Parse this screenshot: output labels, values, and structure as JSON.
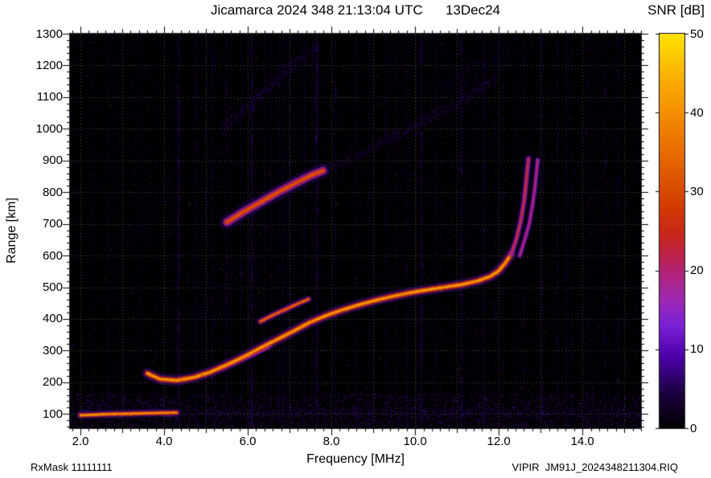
{
  "header": {
    "title": "Jicamarca 2024 348 21:13:04 UTC      13Dec24",
    "colorbar_title": "SNR [dB]"
  },
  "footer": {
    "left": "RxMask 11111111",
    "right": "VIPIR  JM91J_2024348211304.RIQ"
  },
  "chart_data": {
    "type": "heatmap",
    "title": "Jicamarca 2024 348 21:13:04 UTC      13Dec24",
    "xlabel": "Frequency [MHz]",
    "ylabel": "Range [km]",
    "xlim": [
      1.75,
      15.4
    ],
    "ylim": [
      55,
      1300
    ],
    "x_tick_values": [
      2,
      4,
      6,
      8,
      10,
      12,
      14
    ],
    "x_tick_labels": [
      "2.0",
      "4.0",
      "6.0",
      "8.0",
      "10.0",
      "12.0",
      "14.0"
    ],
    "x_semi_tick_step": 1,
    "x_minor_tick_step": 0.2,
    "y_tick_values": [
      100,
      200,
      300,
      400,
      500,
      600,
      700,
      800,
      900,
      1000,
      1100,
      1200,
      1300
    ],
    "y_minor_tick_step": 20,
    "grid": true,
    "colorbar": {
      "label": "SNR [dB]",
      "min": 0,
      "max": 50,
      "ticks": [
        0,
        10,
        20,
        30,
        40,
        50
      ],
      "colormap": [
        [
          0.0,
          "#000000"
        ],
        [
          0.09,
          "#1c0040"
        ],
        [
          0.18,
          "#4b00a8"
        ],
        [
          0.26,
          "#7a1fd8"
        ],
        [
          0.32,
          "#9a28b8"
        ],
        [
          0.4,
          "#b42272"
        ],
        [
          0.48,
          "#c62424"
        ],
        [
          0.56,
          "#d23a00"
        ],
        [
          0.66,
          "#e25e00"
        ],
        [
          0.76,
          "#ef8000"
        ],
        [
          0.88,
          "#f9ab00"
        ],
        [
          1.0,
          "#ffe300"
        ]
      ]
    },
    "rfi_lines": [
      [
        2.65,
        0.18,
        2
      ],
      [
        3.25,
        0.18,
        2
      ],
      [
        3.8,
        0.15,
        2
      ],
      [
        4.35,
        0.45,
        3
      ],
      [
        4.8,
        0.22,
        2
      ],
      [
        5.15,
        0.3,
        2
      ],
      [
        5.5,
        0.28,
        2
      ],
      [
        5.85,
        0.2,
        2
      ],
      [
        6.1,
        0.4,
        3
      ],
      [
        6.4,
        0.28,
        2
      ],
      [
        6.75,
        0.22,
        2
      ],
      [
        7.0,
        0.25,
        2
      ],
      [
        7.35,
        0.2,
        2
      ],
      [
        7.65,
        0.45,
        3
      ],
      [
        8.1,
        0.3,
        2
      ],
      [
        8.6,
        0.22,
        2
      ],
      [
        8.9,
        0.2,
        2
      ],
      [
        9.3,
        0.28,
        2
      ],
      [
        9.55,
        0.2,
        2
      ],
      [
        9.8,
        0.3,
        2
      ],
      [
        10.15,
        0.4,
        3
      ],
      [
        10.5,
        0.24,
        2
      ],
      [
        11.1,
        0.38,
        3
      ],
      [
        11.65,
        0.3,
        2
      ],
      [
        12.1,
        0.28,
        2
      ],
      [
        12.6,
        0.22,
        2
      ],
      [
        13.05,
        0.32,
        2
      ],
      [
        13.4,
        0.28,
        2
      ],
      [
        13.75,
        0.22,
        2
      ],
      [
        14.1,
        0.28,
        2
      ],
      [
        14.55,
        0.3,
        2
      ],
      [
        14.85,
        0.26,
        2
      ]
    ],
    "traces": [
      {
        "name": "e-diffuse-left",
        "style": "diffuse",
        "snr": 7,
        "width_km": 70,
        "points": [
          [
            2.0,
            118
          ],
          [
            2.8,
            126
          ],
          [
            3.6,
            120
          ],
          [
            4.2,
            110
          ]
        ]
      },
      {
        "name": "e-layer-band",
        "style": "diffuse",
        "snr": 11,
        "width_km": 26,
        "points": [
          [
            2.0,
            102
          ],
          [
            4.0,
            104
          ],
          [
            6.5,
            106
          ],
          [
            9.0,
            106
          ],
          [
            11.5,
            106
          ],
          [
            14.0,
            105
          ],
          [
            15.3,
            104
          ]
        ]
      },
      {
        "name": "f-diffuse-cloud",
        "style": "diffuse",
        "snr": 6,
        "width_km": 160,
        "points": [
          [
            4.3,
            330
          ],
          [
            5.0,
            420
          ],
          [
            5.7,
            510
          ],
          [
            6.3,
            590
          ]
        ]
      },
      {
        "name": "oblique-faint-echo",
        "style": "diffuse",
        "snr": 5,
        "width_km": 60,
        "points": [
          [
            3.1,
            640
          ],
          [
            3.7,
            745
          ],
          [
            4.2,
            845
          ]
        ]
      },
      {
        "name": "spread-upper-band",
        "style": "diffuse",
        "snr": 12,
        "width_km": 48,
        "points": [
          [
            5.4,
            1000
          ],
          [
            5.9,
            1060
          ],
          [
            6.4,
            1120
          ],
          [
            6.9,
            1180
          ],
          [
            7.4,
            1235
          ],
          [
            7.7,
            1262
          ]
        ]
      },
      {
        "name": "second-hop-diffuse",
        "style": "diffuse",
        "snr": 13,
        "width_km": 36,
        "points": [
          [
            7.8,
            870
          ],
          [
            8.4,
            908
          ],
          [
            9.0,
            945
          ],
          [
            9.6,
            985
          ],
          [
            10.2,
            1025
          ],
          [
            10.8,
            1068
          ],
          [
            11.4,
            1115
          ],
          [
            11.9,
            1160
          ]
        ]
      },
      {
        "name": "upper-right-scatter",
        "style": "diffuse",
        "snr": 7,
        "width_km": 90,
        "points": [
          [
            10.6,
            1140
          ],
          [
            11.2,
            1175
          ],
          [
            11.8,
            1210
          ],
          [
            12.3,
            1235
          ]
        ]
      },
      {
        "name": "e-layer-core",
        "style": "sharp",
        "snr": 42,
        "width_km": 9,
        "points": [
          [
            2.0,
            96
          ],
          [
            2.6,
            99
          ],
          [
            3.2,
            101
          ],
          [
            3.8,
            103
          ],
          [
            4.3,
            104
          ]
        ]
      },
      {
        "name": "f-trace-double",
        "style": "sharp",
        "snr": 28,
        "width_km": 7,
        "points": [
          [
            5.3,
            240
          ],
          [
            5.7,
            262
          ],
          [
            6.1,
            286
          ],
          [
            6.5,
            312
          ]
        ]
      },
      {
        "name": "f-trace-ordinary",
        "style": "sharp",
        "snr": 43,
        "width_km": 12,
        "points": [
          [
            3.6,
            228
          ],
          [
            3.9,
            210
          ],
          [
            4.3,
            206
          ],
          [
            4.7,
            215
          ],
          [
            5.1,
            232
          ],
          [
            5.5,
            255
          ],
          [
            5.9,
            280
          ],
          [
            6.3,
            308
          ],
          [
            6.7,
            335
          ],
          [
            7.1,
            362
          ],
          [
            7.5,
            390
          ],
          [
            7.9,
            412
          ],
          [
            8.3,
            430
          ],
          [
            8.7,
            446
          ],
          [
            9.1,
            460
          ],
          [
            9.5,
            472
          ],
          [
            9.9,
            483
          ],
          [
            10.3,
            492
          ],
          [
            10.7,
            500
          ],
          [
            11.1,
            508
          ],
          [
            11.5,
            520
          ],
          [
            11.8,
            534
          ],
          [
            12.0,
            552
          ],
          [
            12.15,
            575
          ],
          [
            12.3,
            605
          ]
        ]
      },
      {
        "name": "f-trace-extraordinary-segment",
        "style": "sharp",
        "snr": 36,
        "width_km": 9,
        "points": [
          [
            6.3,
            392
          ],
          [
            6.6,
            412
          ],
          [
            6.9,
            430
          ],
          [
            7.2,
            448
          ],
          [
            7.45,
            462
          ]
        ]
      },
      {
        "name": "f-cusp-ordinary",
        "style": "sharp",
        "snr": 26,
        "width_km": 9,
        "points": [
          [
            12.3,
            605
          ],
          [
            12.42,
            652
          ],
          [
            12.52,
            706
          ],
          [
            12.6,
            766
          ],
          [
            12.65,
            826
          ],
          [
            12.69,
            882
          ],
          [
            12.71,
            906
          ]
        ]
      },
      {
        "name": "f-cusp-extraordinary",
        "style": "sharp",
        "snr": 22,
        "width_km": 8,
        "points": [
          [
            12.5,
            600
          ],
          [
            12.62,
            650
          ],
          [
            12.73,
            702
          ],
          [
            12.81,
            762
          ],
          [
            12.87,
            822
          ],
          [
            12.91,
            876
          ],
          [
            12.93,
            902
          ]
        ]
      },
      {
        "name": "second-hop-bright",
        "style": "sharp",
        "snr": 32,
        "width_km": 16,
        "points": [
          [
            5.5,
            705
          ],
          [
            5.9,
            738
          ],
          [
            6.3,
            768
          ],
          [
            6.7,
            798
          ],
          [
            7.1,
            826
          ],
          [
            7.5,
            852
          ],
          [
            7.8,
            868
          ]
        ]
      }
    ]
  }
}
